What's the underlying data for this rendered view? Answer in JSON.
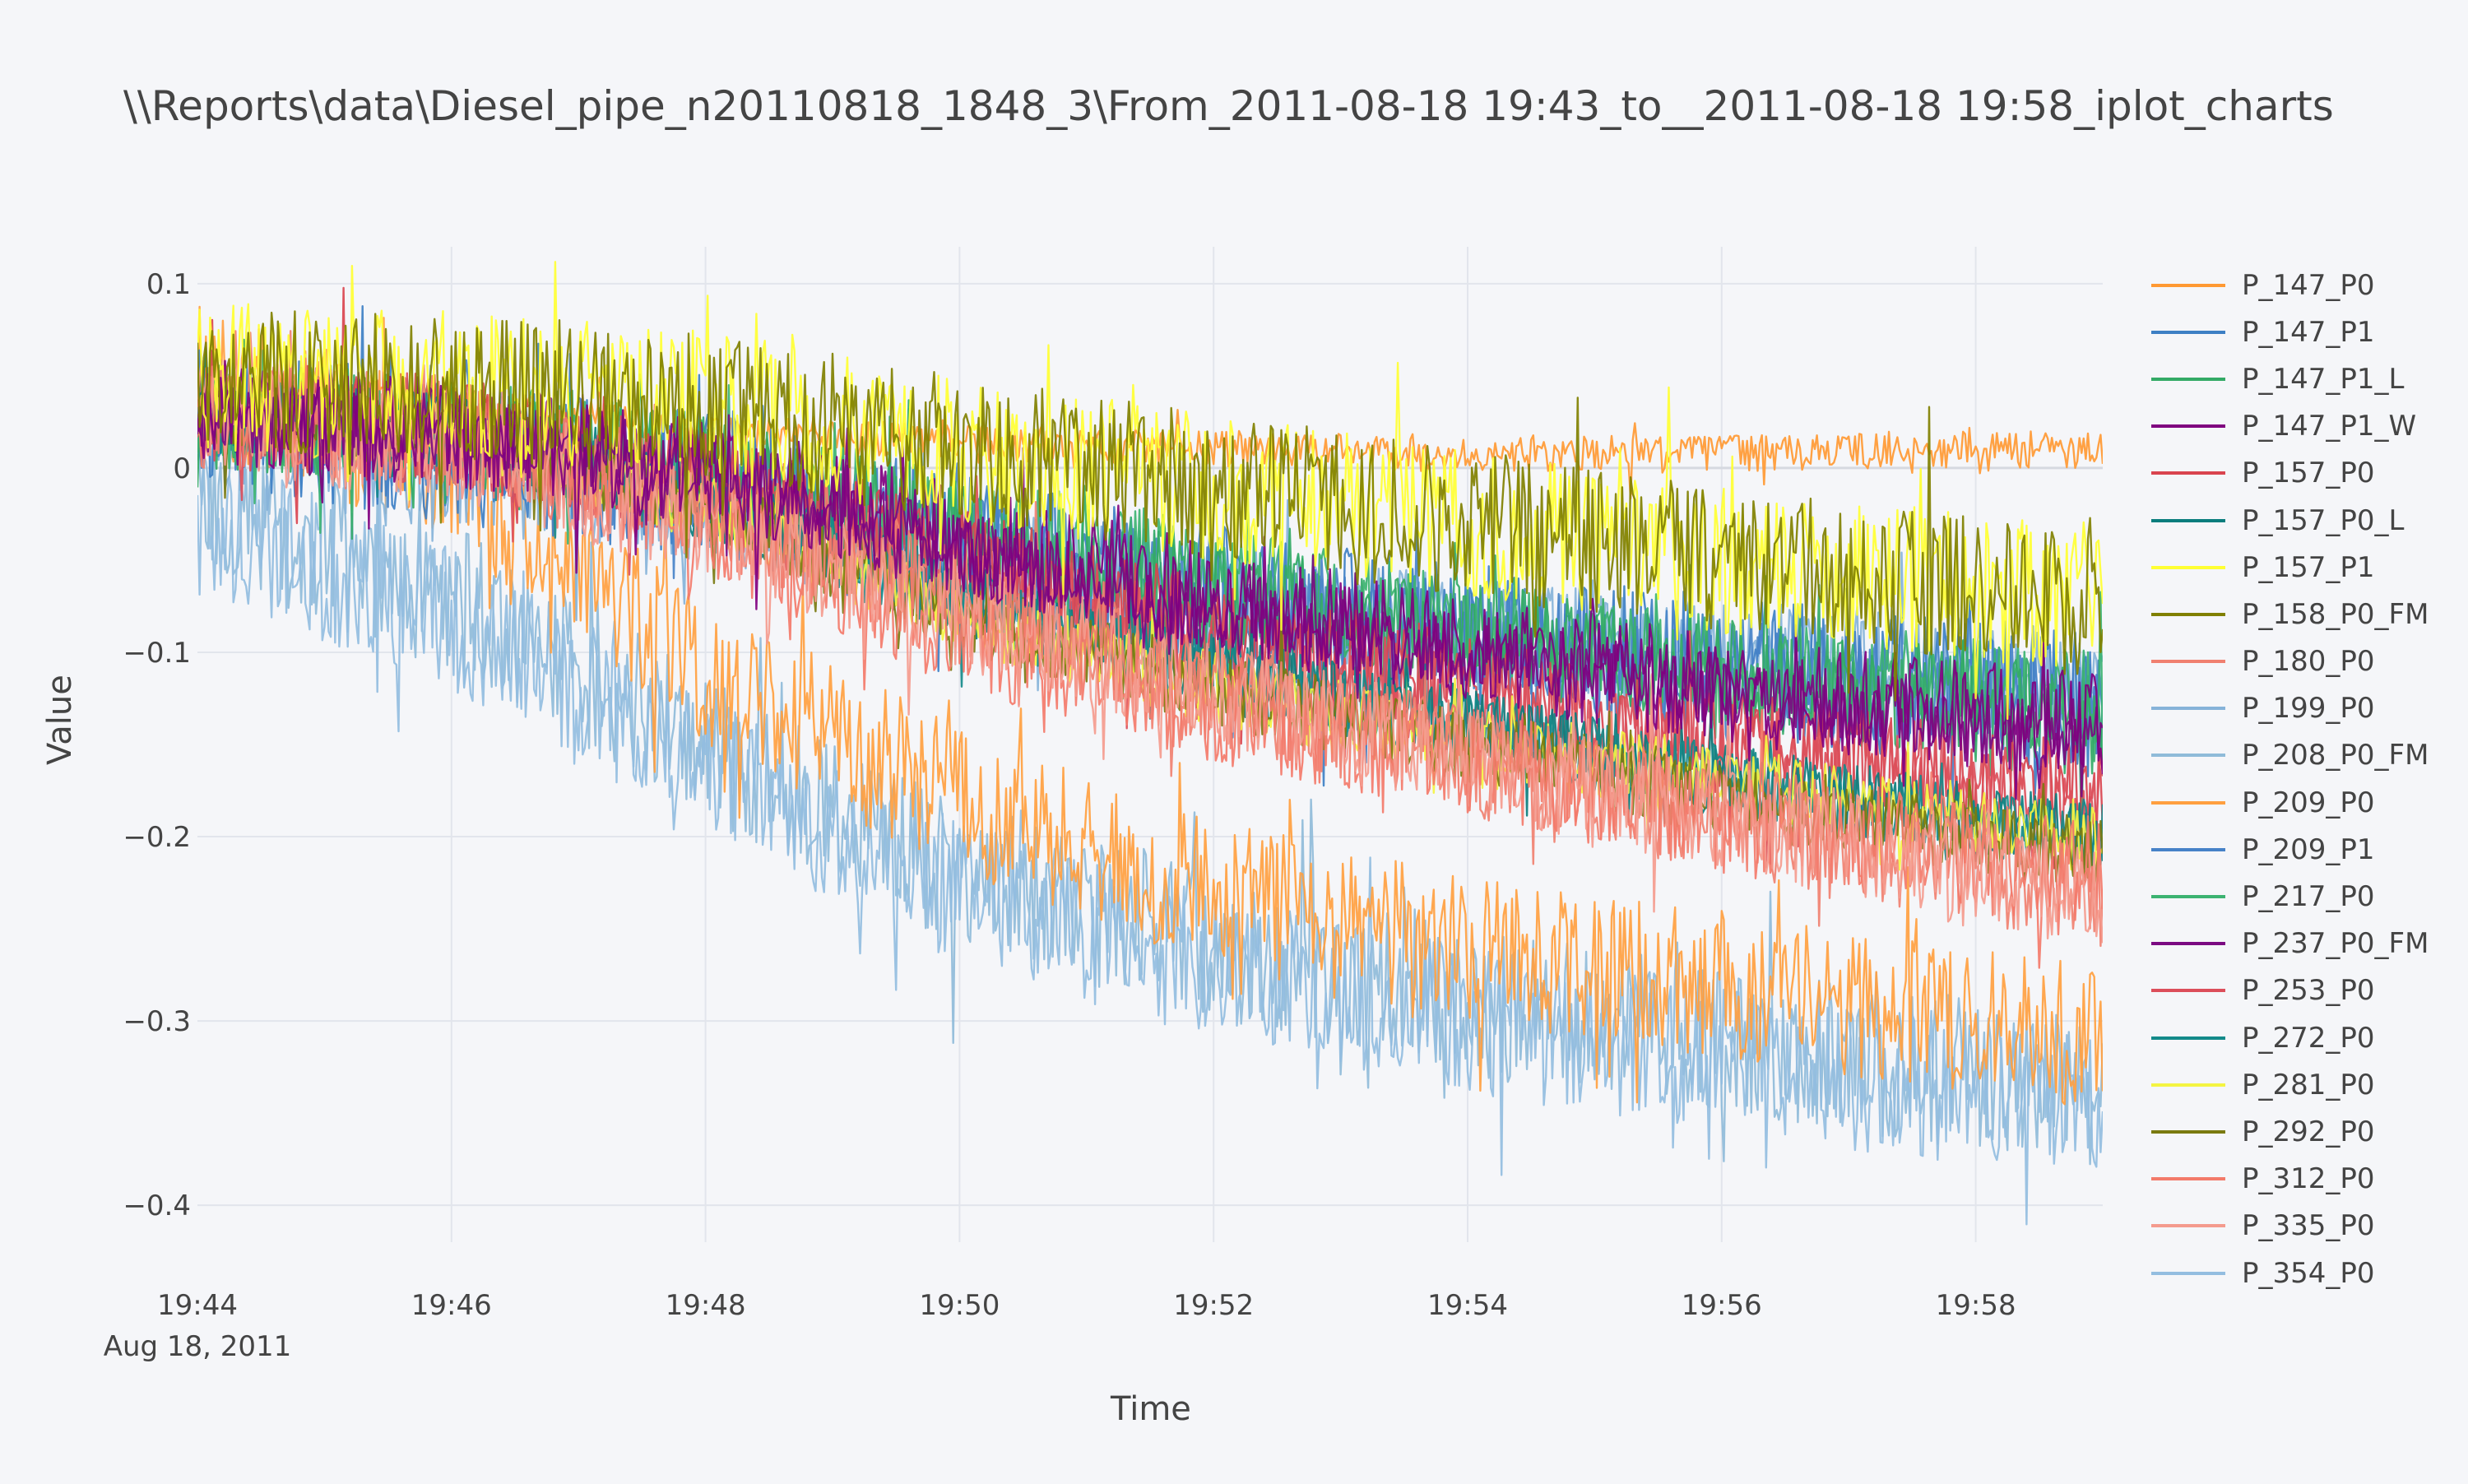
{
  "chart_data": {
    "type": "line",
    "title": "\\\\Reports\\data\\Diesel_pipe_n20110818_1848_3\\From_2011-08-18 19:43_to__2011-08-18 19:58_iplot_charts",
    "xlabel": "Time",
    "ylabel": "Value",
    "xlim": [
      "2011-08-18 19:44",
      "2011-08-18 19:59"
    ],
    "ylim": [
      -0.42,
      0.12
    ],
    "x_ticks": [
      "19:44",
      "19:46",
      "19:48",
      "19:50",
      "19:52",
      "19:54",
      "19:56",
      "19:58"
    ],
    "x_tick_sublabel": "Aug 18, 2011",
    "y_ticks": [
      {
        "value": 0.1,
        "label": "0.1"
      },
      {
        "value": 0,
        "label": "0"
      },
      {
        "value": -0.1,
        "label": "−0.1"
      },
      {
        "value": -0.2,
        "label": "−0.2"
      },
      {
        "value": -0.3,
        "label": "−0.3"
      },
      {
        "value": -0.4,
        "label": "−0.4"
      }
    ],
    "grid": true,
    "legend_position": "right",
    "series": [
      {
        "name": "P_147_P0",
        "color": "#ff9933",
        "x": [
          "19:44",
          "19:46",
          "19:48",
          "19:50",
          "19:52",
          "19:54",
          "19:56",
          "19:58",
          "19:59"
        ],
        "y": [
          0.045,
          0.035,
          0.02,
          0.013,
          0.01,
          0.008,
          0.008,
          0.01,
          0.01
        ],
        "noise": 0.01
      },
      {
        "name": "P_147_P1",
        "color": "#3d7fc4",
        "x": [
          "19:44",
          "19:46",
          "19:48",
          "19:50",
          "19:52",
          "19:54",
          "19:56",
          "19:58",
          "19:59"
        ],
        "y": [
          0.03,
          0.01,
          -0.01,
          -0.04,
          -0.07,
          -0.09,
          -0.11,
          -0.12,
          -0.13
        ],
        "noise": 0.04
      },
      {
        "name": "P_147_P1_L",
        "color": "#33aa66",
        "x": [
          "19:44",
          "19:46",
          "19:48",
          "19:50",
          "19:52",
          "19:54",
          "19:56",
          "19:58",
          "19:59"
        ],
        "y": [
          0.03,
          0.02,
          0.0,
          -0.04,
          -0.07,
          -0.09,
          -0.11,
          -0.13,
          -0.14
        ],
        "noise": 0.03
      },
      {
        "name": "P_147_P1_W",
        "color": "#800080",
        "x": [
          "19:44",
          "19:46",
          "19:48",
          "19:50",
          "19:52",
          "19:54",
          "19:56",
          "19:58",
          "19:59"
        ],
        "y": [
          0.03,
          0.02,
          0.0,
          -0.04,
          -0.07,
          -0.1,
          -0.12,
          -0.135,
          -0.14
        ],
        "noise": 0.03
      },
      {
        "name": "P_157_P0",
        "color": "#d9444f",
        "x": [
          "19:44",
          "19:46",
          "19:48",
          "19:50",
          "19:52",
          "19:54",
          "19:56",
          "19:58",
          "19:59"
        ],
        "y": [
          0.03,
          0.02,
          -0.01,
          -0.05,
          -0.09,
          -0.12,
          -0.15,
          -0.17,
          -0.18
        ],
        "noise": 0.03
      },
      {
        "name": "P_157_P0_L",
        "color": "#0a7d7d",
        "x": [
          "19:44",
          "19:46",
          "19:48",
          "19:50",
          "19:52",
          "19:54",
          "19:56",
          "19:58",
          "19:59"
        ],
        "y": [
          0.03,
          0.02,
          -0.02,
          -0.07,
          -0.11,
          -0.14,
          -0.17,
          -0.19,
          -0.2
        ],
        "noise": 0.02
      },
      {
        "name": "P_157_P1",
        "color": "#ffff33",
        "x": [
          "19:44",
          "19:46",
          "19:48",
          "19:50",
          "19:52",
          "19:54",
          "19:56",
          "19:58",
          "19:59"
        ],
        "y": [
          0.05,
          0.045,
          0.035,
          0.01,
          -0.01,
          -0.03,
          -0.05,
          -0.065,
          -0.07
        ],
        "noise": 0.04
      },
      {
        "name": "P_158_P0_FM",
        "color": "#808000",
        "x": [
          "19:44",
          "19:46",
          "19:48",
          "19:50",
          "19:52",
          "19:54",
          "19:56",
          "19:58",
          "19:59"
        ],
        "y": [
          0.05,
          0.045,
          0.035,
          0.01,
          -0.01,
          -0.03,
          -0.05,
          -0.065,
          -0.075
        ],
        "noise": 0.04
      },
      {
        "name": "P_180_P0",
        "color": "#f08070",
        "x": [
          "19:44",
          "19:46",
          "19:48",
          "19:50",
          "19:52",
          "19:54",
          "19:56",
          "19:58",
          "19:59"
        ],
        "y": [
          0.03,
          0.02,
          -0.02,
          -0.07,
          -0.12,
          -0.16,
          -0.19,
          -0.22,
          -0.23
        ],
        "noise": 0.03
      },
      {
        "name": "P_199_P0",
        "color": "#86b3d9",
        "x": [
          "19:44",
          "19:46",
          "19:48",
          "19:50",
          "19:52",
          "19:54",
          "19:56",
          "19:58",
          "19:59"
        ],
        "y": [
          0.02,
          0.0,
          -0.02,
          -0.05,
          -0.07,
          -0.09,
          -0.1,
          -0.11,
          -0.12
        ],
        "noise": 0.03
      },
      {
        "name": "P_208_P0_FM",
        "color": "#8fbbd9",
        "x": [
          "19:44",
          "19:46",
          "19:48",
          "19:50",
          "19:52",
          "19:54",
          "19:56",
          "19:58",
          "19:59"
        ],
        "y": [
          -0.02,
          -0.07,
          -0.15,
          -0.22,
          -0.26,
          -0.29,
          -0.31,
          -0.33,
          -0.34
        ],
        "noise": 0.04
      },
      {
        "name": "P_209_P0",
        "color": "#ff9f40",
        "x": [
          "19:44",
          "19:46",
          "19:48",
          "19:50",
          "19:52",
          "19:54",
          "19:56",
          "19:58",
          "19:59"
        ],
        "y": [
          0.05,
          0.0,
          -0.11,
          -0.18,
          -0.23,
          -0.26,
          -0.28,
          -0.3,
          -0.31
        ],
        "noise": 0.04
      },
      {
        "name": "P_209_P1",
        "color": "#4682c8",
        "x": [
          "19:44",
          "19:46",
          "19:48",
          "19:50",
          "19:52",
          "19:54",
          "19:56",
          "19:58",
          "19:59"
        ],
        "y": [
          0.03,
          0.02,
          -0.01,
          -0.04,
          -0.07,
          -0.09,
          -0.11,
          -0.125,
          -0.13
        ],
        "noise": 0.03
      },
      {
        "name": "P_217_P0",
        "color": "#3cb371",
        "x": [
          "19:44",
          "19:46",
          "19:48",
          "19:50",
          "19:52",
          "19:54",
          "19:56",
          "19:58",
          "19:59"
        ],
        "y": [
          0.03,
          0.02,
          0.0,
          -0.03,
          -0.06,
          -0.09,
          -0.11,
          -0.12,
          -0.13
        ],
        "noise": 0.03
      },
      {
        "name": "P_237_P0_FM",
        "color": "#7b0a82",
        "x": [
          "19:44",
          "19:46",
          "19:48",
          "19:50",
          "19:52",
          "19:54",
          "19:56",
          "19:58",
          "19:59"
        ],
        "y": [
          0.03,
          0.02,
          0.0,
          -0.04,
          -0.08,
          -0.1,
          -0.12,
          -0.14,
          -0.145
        ],
        "noise": 0.02
      },
      {
        "name": "P_253_P0",
        "color": "#dc4e5a",
        "x": [
          "19:44",
          "19:46",
          "19:48",
          "19:50",
          "19:52",
          "19:54",
          "19:56",
          "19:58",
          "19:59"
        ],
        "y": [
          0.03,
          0.02,
          -0.01,
          -0.06,
          -0.1,
          -0.13,
          -0.15,
          -0.17,
          -0.18
        ],
        "noise": 0.03
      },
      {
        "name": "P_272_P0",
        "color": "#138a8a",
        "x": [
          "19:44",
          "19:46",
          "19:48",
          "19:50",
          "19:52",
          "19:54",
          "19:56",
          "19:58",
          "19:59"
        ],
        "y": [
          0.03,
          0.02,
          -0.02,
          -0.07,
          -0.11,
          -0.14,
          -0.17,
          -0.19,
          -0.2
        ],
        "noise": 0.02
      },
      {
        "name": "P_281_P0",
        "color": "#f4f442",
        "x": [
          "19:44",
          "19:46",
          "19:48",
          "19:50",
          "19:52",
          "19:54",
          "19:56",
          "19:58",
          "19:59"
        ],
        "y": [
          0.03,
          0.02,
          -0.02,
          -0.08,
          -0.12,
          -0.15,
          -0.17,
          -0.195,
          -0.2
        ],
        "noise": 0.02
      },
      {
        "name": "P_292_P0",
        "color": "#7a7a10",
        "x": [
          "19:44",
          "19:46",
          "19:48",
          "19:50",
          "19:52",
          "19:54",
          "19:56",
          "19:58",
          "19:59"
        ],
        "y": [
          0.03,
          0.02,
          -0.02,
          -0.08,
          -0.12,
          -0.15,
          -0.18,
          -0.2,
          -0.21
        ],
        "noise": 0.02
      },
      {
        "name": "P_312_P0",
        "color": "#f37a6a",
        "x": [
          "19:44",
          "19:46",
          "19:48",
          "19:50",
          "19:52",
          "19:54",
          "19:56",
          "19:58",
          "19:59"
        ],
        "y": [
          0.03,
          0.02,
          -0.03,
          -0.09,
          -0.13,
          -0.16,
          -0.19,
          -0.21,
          -0.22
        ],
        "noise": 0.03
      },
      {
        "name": "P_335_P0",
        "color": "#f49b8e",
        "x": [
          "19:44",
          "19:46",
          "19:48",
          "19:50",
          "19:52",
          "19:54",
          "19:56",
          "19:58",
          "19:59"
        ],
        "y": [
          0.03,
          0.01,
          -0.03,
          -0.08,
          -0.12,
          -0.16,
          -0.19,
          -0.22,
          -0.23
        ],
        "noise": 0.03
      },
      {
        "name": "P_354_P0",
        "color": "#93bde0",
        "x": [
          "19:44",
          "19:46",
          "19:48",
          "19:50",
          "19:52",
          "19:54",
          "19:56",
          "19:58",
          "19:59"
        ],
        "y": [
          -0.03,
          -0.08,
          -0.16,
          -0.23,
          -0.27,
          -0.3,
          -0.32,
          -0.34,
          -0.35
        ],
        "noise": 0.04
      }
    ]
  }
}
